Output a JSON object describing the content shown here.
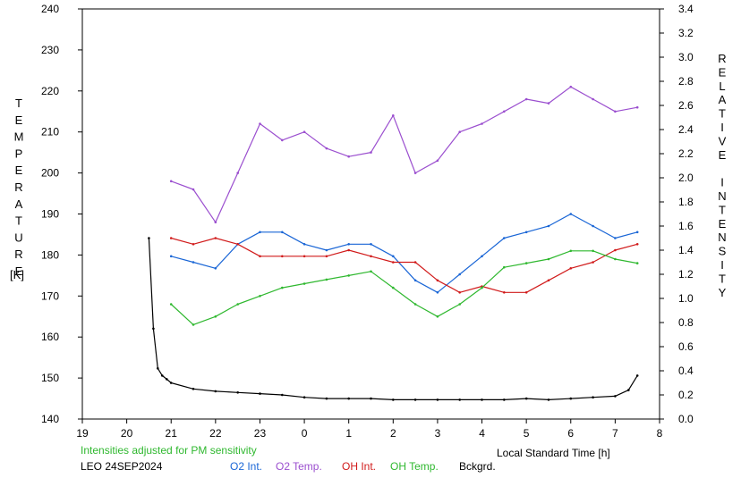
{
  "chart_data": {
    "type": "line",
    "ylabel_left": "TEMPERATURE",
    "ylabel_left_unit": "[K]",
    "ylabel_right": "RELATIVE INTENSITY",
    "xlabel": "Local Standard Time [h]",
    "note": "Intensities adjusted for PM sensitivity",
    "station": "LEO 24SEP2024",
    "x_ticks": [
      "19",
      "20",
      "21",
      "22",
      "23",
      "0",
      "1",
      "2",
      "3",
      "4",
      "5",
      "6",
      "7",
      "8"
    ],
    "y_left_ticks": [
      "140",
      "150",
      "160",
      "170",
      "180",
      "190",
      "200",
      "210",
      "220",
      "230",
      "240"
    ],
    "y_right_ticks": [
      "0.0",
      "0.2",
      "0.4",
      "0.6",
      "0.8",
      "1.0",
      "1.2",
      "1.4",
      "1.6",
      "1.8",
      "2.0",
      "2.2",
      "2.4",
      "2.6",
      "2.8",
      "3.0",
      "3.2",
      "3.4"
    ],
    "x_range_hours": [
      19,
      32
    ],
    "y_left_range": [
      140,
      240
    ],
    "y_right_range": [
      0,
      3.4
    ],
    "legend": [
      {
        "label": "O2 Int.",
        "color": "#1a66d6"
      },
      {
        "label": "O2 Temp.",
        "color": "#9b4fcf"
      },
      {
        "label": "OH Int.",
        "color": "#d11b1b"
      },
      {
        "label": "OH Temp.",
        "color": "#2fb82f"
      },
      {
        "label": "Bckgrd.",
        "color": "#000000"
      }
    ],
    "series": [
      {
        "name": "O2 Temp.",
        "axis": "left",
        "color": "#9b4fcf",
        "x": [
          21.0,
          21.5,
          22.0,
          22.5,
          23.0,
          23.5,
          24.0,
          24.5,
          25.0,
          25.5,
          26.0,
          26.5,
          27.0,
          27.5,
          28.0,
          28.5,
          29.0,
          29.5,
          30.0,
          30.5,
          31.0,
          31.5
        ],
        "y": [
          198,
          196,
          188,
          200,
          212,
          208,
          210,
          206,
          204,
          205,
          214,
          200,
          203,
          210,
          212,
          215,
          218,
          217,
          221,
          218,
          215,
          216
        ]
      },
      {
        "name": "O2 Int.",
        "axis": "right",
        "color": "#1a66d6",
        "x": [
          21.0,
          21.5,
          22.0,
          22.5,
          23.0,
          23.5,
          24.0,
          24.5,
          25.0,
          25.5,
          26.0,
          26.5,
          27.0,
          27.5,
          28.0,
          28.5,
          29.0,
          29.5,
          30.0,
          30.5,
          31.0,
          31.5
        ],
        "y": [
          1.35,
          1.3,
          1.25,
          1.45,
          1.55,
          1.55,
          1.45,
          1.4,
          1.45,
          1.45,
          1.35,
          1.15,
          1.05,
          1.2,
          1.35,
          1.5,
          1.55,
          1.6,
          1.7,
          1.6,
          1.5,
          1.55
        ]
      },
      {
        "name": "OH Int.",
        "axis": "right",
        "color": "#d11b1b",
        "x": [
          21.0,
          21.5,
          22.0,
          22.5,
          23.0,
          23.5,
          24.0,
          24.5,
          25.0,
          25.5,
          26.0,
          26.5,
          27.0,
          27.5,
          28.0,
          28.5,
          29.0,
          29.5,
          30.0,
          30.5,
          31.0,
          31.5
        ],
        "y": [
          1.5,
          1.45,
          1.5,
          1.45,
          1.35,
          1.35,
          1.35,
          1.35,
          1.4,
          1.35,
          1.3,
          1.3,
          1.15,
          1.05,
          1.1,
          1.05,
          1.05,
          1.15,
          1.25,
          1.3,
          1.4,
          1.45
        ]
      },
      {
        "name": "OH Temp.",
        "axis": "left",
        "color": "#2fb82f",
        "x": [
          21.0,
          21.5,
          22.0,
          22.5,
          23.0,
          23.5,
          24.0,
          24.5,
          25.0,
          25.5,
          26.0,
          26.5,
          27.0,
          27.5,
          28.0,
          28.5,
          29.0,
          29.5,
          30.0,
          30.5,
          31.0,
          31.5
        ],
        "y": [
          168,
          163,
          165,
          168,
          170,
          172,
          173,
          174,
          175,
          176,
          172,
          168,
          165,
          168,
          172,
          177,
          178,
          179,
          181,
          181,
          179,
          178
        ]
      },
      {
        "name": "Bckgrd.",
        "axis": "right",
        "color": "#000000",
        "x": [
          20.5,
          20.6,
          20.7,
          20.8,
          20.9,
          21.0,
          21.5,
          22.0,
          22.5,
          23.0,
          23.5,
          24.0,
          24.5,
          25.0,
          25.5,
          26.0,
          26.5,
          27.0,
          27.5,
          28.0,
          28.5,
          29.0,
          29.5,
          30.0,
          30.5,
          31.0,
          31.3,
          31.5
        ],
        "y": [
          1.5,
          0.75,
          0.42,
          0.36,
          0.33,
          0.3,
          0.25,
          0.23,
          0.22,
          0.21,
          0.2,
          0.18,
          0.17,
          0.17,
          0.17,
          0.16,
          0.16,
          0.16,
          0.16,
          0.16,
          0.16,
          0.17,
          0.16,
          0.17,
          0.18,
          0.19,
          0.24,
          0.36
        ]
      }
    ]
  }
}
